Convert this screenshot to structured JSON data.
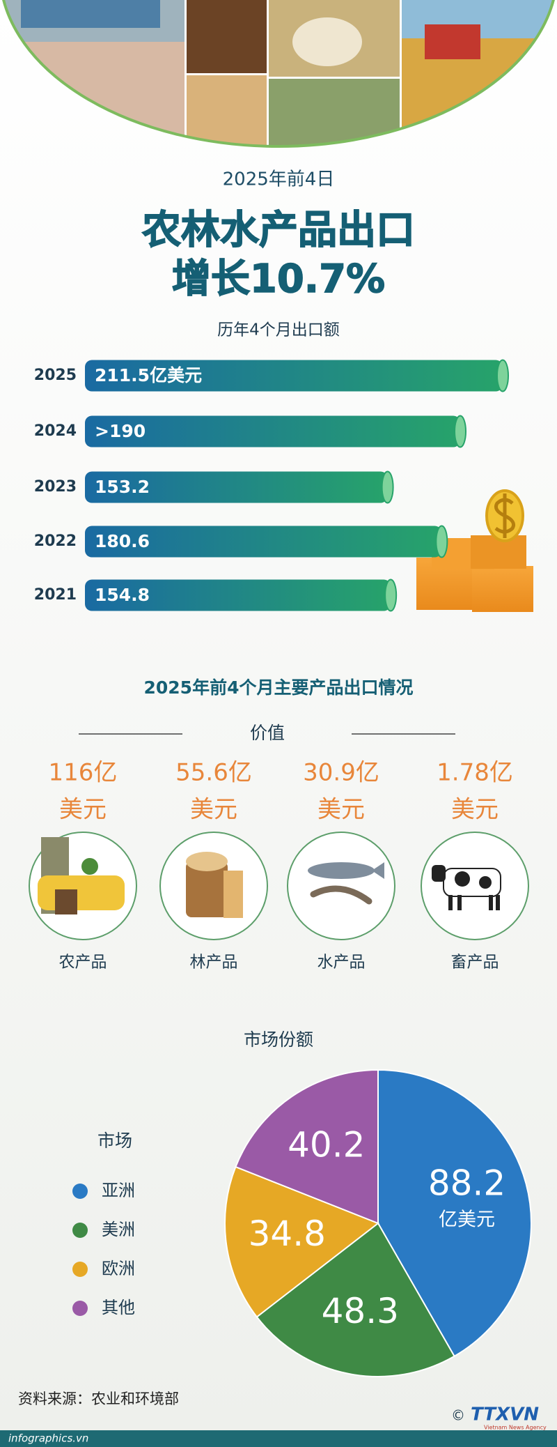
{
  "header": {
    "date": "2025年前4日",
    "title_lines": [
      "农林水产品出口",
      "增长10.7%"
    ]
  },
  "chart_data": [
    {
      "type": "bar",
      "orientation": "horizontal",
      "title": "历年4个月出口额",
      "categories": [
        "2025",
        "2024",
        "2023",
        "2022",
        "2021"
      ],
      "values": [
        211.5,
        190,
        153.2,
        180.6,
        154.8
      ],
      "value_labels": [
        "211.5亿美元",
        ">190",
        "153.2",
        "180.6",
        "154.8"
      ],
      "colors": [
        "#1a6aa2",
        "#27a36a"
      ]
    },
    {
      "type": "pie",
      "title": "市场份额",
      "legend_title": "市场",
      "categories": [
        "亚洲",
        "美洲",
        "欧洲",
        "其他"
      ],
      "values": [
        88.2,
        48.3,
        34.8,
        40.2
      ],
      "unit": "亿美元",
      "colors": [
        "#2a7ac4",
        "#3f8a45",
        "#e6a825",
        "#9a5aa6"
      ]
    }
  ],
  "products": {
    "title": "2025年前4个月主要产品出口情况",
    "subtitle": "价值",
    "items": [
      {
        "amount": "116亿",
        "unit": "美元",
        "name": "农产品"
      },
      {
        "amount": "55.6亿",
        "unit": "美元",
        "name": "林产品"
      },
      {
        "amount": "30.9亿",
        "unit": "美元",
        "name": "水产品"
      },
      {
        "amount": "1.78亿",
        "unit": "美元",
        "name": "畜产品"
      }
    ]
  },
  "source": "资料来源：农业和环境部",
  "footer": {
    "site": "infographics.vn",
    "copyright": "©",
    "logo": "TTXVN",
    "logo_sub": "Vietnam News Agency"
  }
}
